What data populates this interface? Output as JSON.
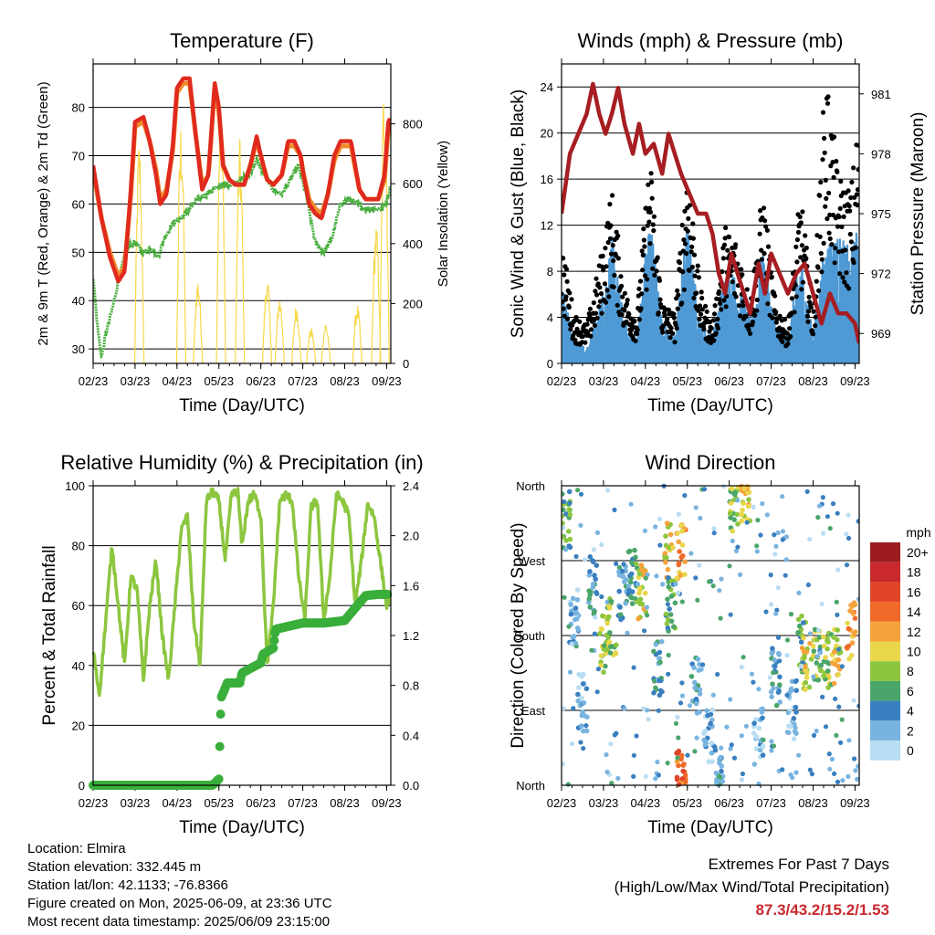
{
  "chart_data": [
    {
      "type": "line",
      "title": "Temperature (F)",
      "xlabel": "Time (Day/UTC)",
      "ylabel": "2m & 9m T (Red, Orange) & 2m Td (Green)",
      "y2label": "Solar Insolation (Yellow)",
      "x_ticks": [
        "02/23",
        "03/23",
        "04/23",
        "05/23",
        "06/23",
        "07/23",
        "08/23",
        "09/23"
      ],
      "ylim": [
        27,
        89
      ],
      "y_ticks": [
        30,
        40,
        50,
        60,
        70,
        80
      ],
      "y2lim": [
        0,
        1000
      ],
      "y2_ticks": [
        0,
        200,
        400,
        600,
        800
      ],
      "grid": true,
      "series": [
        {
          "name": "2m T",
          "color": "#e02a1e",
          "x": [
            0,
            0.2,
            0.4,
            0.6,
            0.75,
            0.9,
            1,
            1.2,
            1.35,
            1.5,
            1.6,
            1.75,
            1.9,
            2,
            2.15,
            2.3,
            2.45,
            2.6,
            2.75,
            2.9,
            3,
            3.1,
            3.25,
            3.4,
            3.5,
            3.6,
            3.75,
            3.9,
            4,
            4.15,
            4.3,
            4.5,
            4.65,
            4.8,
            4.95,
            5,
            5.15,
            5.3,
            5.45,
            5.6,
            5.75,
            5.9,
            6,
            6.15,
            6.35,
            6.5,
            6.65,
            6.8,
            6.95,
            7.05,
            7.1
          ],
          "values": [
            68,
            57,
            49,
            44,
            46,
            63,
            77,
            78,
            73,
            66,
            60,
            62,
            72,
            84,
            86,
            86,
            74,
            63,
            66,
            85,
            80,
            68,
            65,
            64,
            64,
            64,
            68,
            74,
            70,
            65,
            64,
            66,
            73,
            73,
            70,
            67,
            60,
            58,
            57,
            62,
            70,
            73,
            73,
            73,
            63,
            61,
            61,
            61,
            66,
            78,
            75
          ]
        },
        {
          "name": "9m T",
          "color": "#f08a2a",
          "x": [
            0,
            0.2,
            0.4,
            0.6,
            0.75,
            0.9,
            1,
            1.2,
            1.35,
            1.5,
            1.6,
            1.75,
            1.9,
            2,
            2.15,
            2.3,
            2.45,
            2.6,
            2.75,
            2.9,
            3,
            3.1,
            3.25,
            3.4,
            3.5,
            3.6,
            3.75,
            3.9,
            4,
            4.15,
            4.3,
            4.5,
            4.65,
            4.8,
            4.95,
            5,
            5.15,
            5.3,
            5.45,
            5.6,
            5.75,
            5.9,
            6,
            6.15,
            6.35,
            6.5,
            6.65,
            6.8,
            6.95,
            7.05,
            7.1
          ],
          "values": [
            67,
            57,
            50,
            45,
            47,
            62,
            76,
            77,
            73,
            67,
            61,
            63,
            71,
            83,
            85,
            85,
            74,
            64,
            66,
            84,
            79,
            68,
            65,
            64,
            64,
            64,
            68,
            73,
            70,
            65,
            64,
            66,
            72,
            72,
            70,
            67,
            61,
            59,
            58,
            62,
            69,
            72,
            72,
            72,
            63,
            61,
            61,
            61,
            65,
            77,
            74
          ]
        },
        {
          "name": "2m Td",
          "color": "#4aae3f",
          "x": [
            0,
            0.1,
            0.2,
            0.3,
            0.45,
            0.6,
            0.8,
            1,
            1.2,
            1.4,
            1.55,
            1.7,
            1.9,
            2.1,
            2.3,
            2.5,
            2.7,
            2.9,
            3.1,
            3.3,
            3.5,
            3.7,
            3.9,
            4.1,
            4.3,
            4.5,
            4.7,
            4.9,
            5.1,
            5.3,
            5.5,
            5.7,
            5.9,
            6.1,
            6.3,
            6.5,
            6.7,
            6.9,
            7.05,
            7.1
          ],
          "values": [
            45,
            35,
            28,
            33,
            38,
            44,
            51,
            52,
            50,
            51,
            49,
            53,
            56,
            57,
            59,
            61,
            62,
            63,
            64,
            64,
            65,
            66,
            69,
            66,
            63,
            62,
            65,
            68,
            61,
            52,
            50,
            53,
            60,
            61,
            60,
            59,
            59,
            59,
            62,
            64
          ]
        },
        {
          "name": "Solar Insolation",
          "color": "#f7d84a",
          "axis": "y2",
          "peaks": [
            {
              "x": 1.1,
              "peak": 760
            },
            {
              "x": 2.1,
              "peak": 830
            },
            {
              "x": 2.5,
              "peak": 290
            },
            {
              "x": 3.05,
              "peak": 920
            },
            {
              "x": 3.5,
              "peak": 750
            },
            {
              "x": 4.15,
              "peak": 290
            },
            {
              "x": 4.45,
              "peak": 230
            },
            {
              "x": 4.85,
              "peak": 200
            },
            {
              "x": 5.2,
              "peak": 120
            },
            {
              "x": 5.55,
              "peak": 140
            },
            {
              "x": 6.3,
              "peak": 200
            },
            {
              "x": 6.75,
              "peak": 470
            },
            {
              "x": 6.95,
              "peak": 980
            }
          ]
        }
      ]
    },
    {
      "type": "scatter",
      "title": "Winds (mph) & Pressure (mb)",
      "xlabel": "Time (Day/UTC)",
      "ylabel": "Sonic Wind & Gust (Blue, Black)",
      "y2label": "Station Pressure (Maroon)",
      "x_ticks": [
        "02/23",
        "03/23",
        "04/23",
        "05/23",
        "06/23",
        "07/23",
        "08/23",
        "09/23"
      ],
      "ylim": [
        0,
        26
      ],
      "y_ticks": [
        0,
        4,
        8,
        12,
        16,
        20,
        24
      ],
      "y2lim": [
        967.5,
        982.5
      ],
      "y2_ticks": [
        969,
        972,
        975,
        978,
        981
      ],
      "grid": true,
      "series": [
        {
          "name": "Sonic Wind",
          "color": "#4f9ad4",
          "x": [
            0,
            0.3,
            0.6,
            0.9,
            1.2,
            1.5,
            1.8,
            2.1,
            2.4,
            2.7,
            3.0,
            3.3,
            3.6,
            3.9,
            4.2,
            4.5,
            4.8,
            5.1,
            5.4,
            5.7,
            6.0,
            6.3,
            6.6,
            6.9,
            7.1
          ],
          "values": [
            6,
            2,
            1,
            4,
            9,
            3,
            2,
            11,
            3,
            2,
            10,
            3,
            2,
            7,
            6,
            3,
            8,
            3,
            2,
            8,
            2,
            9,
            9,
            8,
            10
          ]
        },
        {
          "name": "Gust",
          "color": "#000000",
          "x": [
            0,
            0.3,
            0.6,
            0.9,
            1.2,
            1.5,
            1.8,
            2.1,
            2.4,
            2.7,
            3.0,
            3.3,
            3.6,
            3.9,
            4.2,
            4.5,
            4.8,
            5.1,
            5.4,
            5.7,
            6.0,
            6.3,
            6.6,
            6.9,
            7.1
          ],
          "values": [
            10,
            4,
            3,
            8,
            14,
            6,
            4,
            17,
            5,
            4,
            17,
            6,
            3,
            11,
            10,
            5,
            14,
            5,
            3,
            14,
            4,
            24,
            15,
            14,
            20
          ]
        },
        {
          "name": "Station Pressure",
          "color": "#a61e22",
          "axis": "y2",
          "x": [
            0,
            0.2,
            0.4,
            0.6,
            0.75,
            0.9,
            1.05,
            1.2,
            1.35,
            1.5,
            1.7,
            1.85,
            2,
            2.2,
            2.4,
            2.55,
            2.7,
            2.85,
            3.05,
            3.25,
            3.45,
            3.6,
            3.75,
            3.9,
            4.05,
            4.2,
            4.35,
            4.5,
            4.7,
            4.85,
            5,
            5.2,
            5.4,
            5.6,
            5.8,
            6.0,
            6.2,
            6.4,
            6.6,
            6.8,
            7.0,
            7.1
          ],
          "values": [
            975,
            978,
            979,
            980,
            981.5,
            980,
            979,
            980,
            981.3,
            979.5,
            978,
            979.5,
            978,
            978.5,
            977,
            979,
            978,
            977,
            976,
            975,
            975,
            974,
            972,
            971,
            973,
            972,
            971,
            970,
            972.5,
            971,
            973,
            972,
            971,
            972,
            972.5,
            971,
            969.5,
            971,
            970,
            970,
            969.5,
            968.5
          ]
        }
      ]
    },
    {
      "type": "line",
      "title": "Relative Humidity (%) & Precipitation (in)",
      "xlabel": "Time (Day/UTC)",
      "ylabel": "Percent & Total Rainfall",
      "x_ticks": [
        "02/23",
        "03/23",
        "04/23",
        "05/23",
        "06/23",
        "07/23",
        "08/23",
        "09/23"
      ],
      "ylim": [
        0,
        100
      ],
      "y_ticks": [
        0,
        20,
        40,
        60,
        80,
        100
      ],
      "y2lim": [
        0,
        2.4
      ],
      "y2_ticks": [
        "0.0",
        "0.4",
        "0.8",
        "1.2",
        "1.6",
        "2.0",
        "2.4"
      ],
      "grid": true,
      "series": [
        {
          "name": "Relative Humidity",
          "color": "#8cc63f",
          "x": [
            0,
            0.15,
            0.3,
            0.45,
            0.6,
            0.75,
            0.9,
            1.05,
            1.2,
            1.35,
            1.5,
            1.65,
            1.8,
            1.95,
            2.1,
            2.25,
            2.4,
            2.55,
            2.7,
            2.85,
            3,
            3.15,
            3.3,
            3.45,
            3.55,
            3.7,
            3.85,
            4,
            4.15,
            4.3,
            4.45,
            4.6,
            4.75,
            4.9,
            5.05,
            5.2,
            5.35,
            5.5,
            5.65,
            5.8,
            5.95,
            6.1,
            6.25,
            6.4,
            6.55,
            6.7,
            6.85,
            7.0,
            7.1
          ],
          "values": [
            45,
            30,
            55,
            80,
            60,
            40,
            70,
            65,
            35,
            60,
            75,
            50,
            35,
            60,
            85,
            90,
            55,
            40,
            95,
            98,
            95,
            75,
            97,
            98,
            80,
            95,
            97,
            90,
            40,
            60,
            95,
            97,
            95,
            70,
            55,
            93,
            95,
            55,
            70,
            97,
            95,
            90,
            60,
            75,
            94,
            90,
            75,
            60,
            63
          ]
        },
        {
          "name": "Total Rainfall",
          "color": "#3aae3a",
          "axis": "y2",
          "x": [
            0,
            1,
            2,
            2.85,
            3.0,
            3.05,
            3.2,
            3.5,
            3.55,
            4.0,
            4.05,
            4.3,
            4.35,
            5.0,
            5.5,
            6.0,
            6.2,
            6.5,
            6.8,
            7.1
          ],
          "values": [
            0,
            0,
            0,
            0,
            0.05,
            0.7,
            0.82,
            0.82,
            0.9,
            0.98,
            1.05,
            1.1,
            1.25,
            1.3,
            1.3,
            1.32,
            1.4,
            1.52,
            1.53,
            1.53
          ]
        }
      ]
    },
    {
      "type": "scatter",
      "title": "Wind Direction",
      "xlabel": "Time (Day/UTC)",
      "ylabel": "Direction (Colored By Speed)",
      "x_ticks": [
        "02/23",
        "03/23",
        "04/23",
        "05/23",
        "06/23",
        "07/23",
        "08/23",
        "09/23"
      ],
      "y_ticks": [
        "North",
        "East",
        "South",
        "West",
        "North"
      ],
      "ylim": [
        0,
        360
      ],
      "grid": true,
      "legend": {
        "title": "mph",
        "labels": [
          "20+",
          "18",
          "16",
          "14",
          "12",
          "10",
          "8",
          "6",
          "4",
          "2",
          "0"
        ],
        "colors": [
          "#9b1b1e",
          "#c9282c",
          "#e0452a",
          "#f06a2a",
          "#f6a23a",
          "#e9d64b",
          "#8cc63f",
          "#4aa56a",
          "#3a7fc0",
          "#79b4e0",
          "#b9ddf3"
        ]
      },
      "clusters": [
        {
          "x": 0.1,
          "dir": 320,
          "speed": 6
        },
        {
          "x": 0.3,
          "dir": 200,
          "speed": 2
        },
        {
          "x": 0.5,
          "dir": 100,
          "speed": 2
        },
        {
          "x": 0.75,
          "dir": 240,
          "speed": 4
        },
        {
          "x": 1.0,
          "dir": 170,
          "speed": 8
        },
        {
          "x": 1.2,
          "dir": 190,
          "speed": 8
        },
        {
          "x": 1.45,
          "dir": 230,
          "speed": 4
        },
        {
          "x": 1.7,
          "dir": 250,
          "speed": 6
        },
        {
          "x": 1.9,
          "dir": 230,
          "speed": 10
        },
        {
          "x": 2.3,
          "dir": 140,
          "speed": 4
        },
        {
          "x": 2.55,
          "dir": 280,
          "speed": 10
        },
        {
          "x": 2.6,
          "dir": 220,
          "speed": 6
        },
        {
          "x": 2.85,
          "dir": 280,
          "speed": 12
        },
        {
          "x": 2.85,
          "dir": 10,
          "speed": 14
        },
        {
          "x": 3.2,
          "dir": 120,
          "speed": 4
        },
        {
          "x": 3.5,
          "dir": 60,
          "speed": 2
        },
        {
          "x": 3.75,
          "dir": 20,
          "speed": 4
        },
        {
          "x": 4.1,
          "dir": 340,
          "speed": 8
        },
        {
          "x": 4.4,
          "dir": 350,
          "speed": 10
        },
        {
          "x": 4.7,
          "dir": 60,
          "speed": 2
        },
        {
          "x": 5.1,
          "dir": 130,
          "speed": 4
        },
        {
          "x": 5.5,
          "dir": 90,
          "speed": 2
        },
        {
          "x": 5.75,
          "dir": 170,
          "speed": 6
        },
        {
          "x": 5.85,
          "dir": 150,
          "speed": 10
        },
        {
          "x": 6.1,
          "dir": 160,
          "speed": 8
        },
        {
          "x": 6.35,
          "dir": 150,
          "speed": 8
        },
        {
          "x": 6.55,
          "dir": 155,
          "speed": 10
        },
        {
          "x": 6.9,
          "dir": 185,
          "speed": 12
        }
      ]
    }
  ],
  "footer": {
    "location": "Location: Elmira",
    "elevation": "Station elevation: 332.445 m",
    "latlon": "Station lat/lon: 42.1133; -76.8366",
    "created": "Figure created on Mon, 2025-06-09, at 23:36 UTC",
    "timestamp": "Most recent data timestamp: 2025/06/09 23:15:00"
  },
  "extremes": {
    "title": "Extremes For Past 7 Days",
    "subtitle": "(High/Low/Max Wind/Total Precipitation)",
    "values": "87.3/43.2/15.2/1.53"
  }
}
